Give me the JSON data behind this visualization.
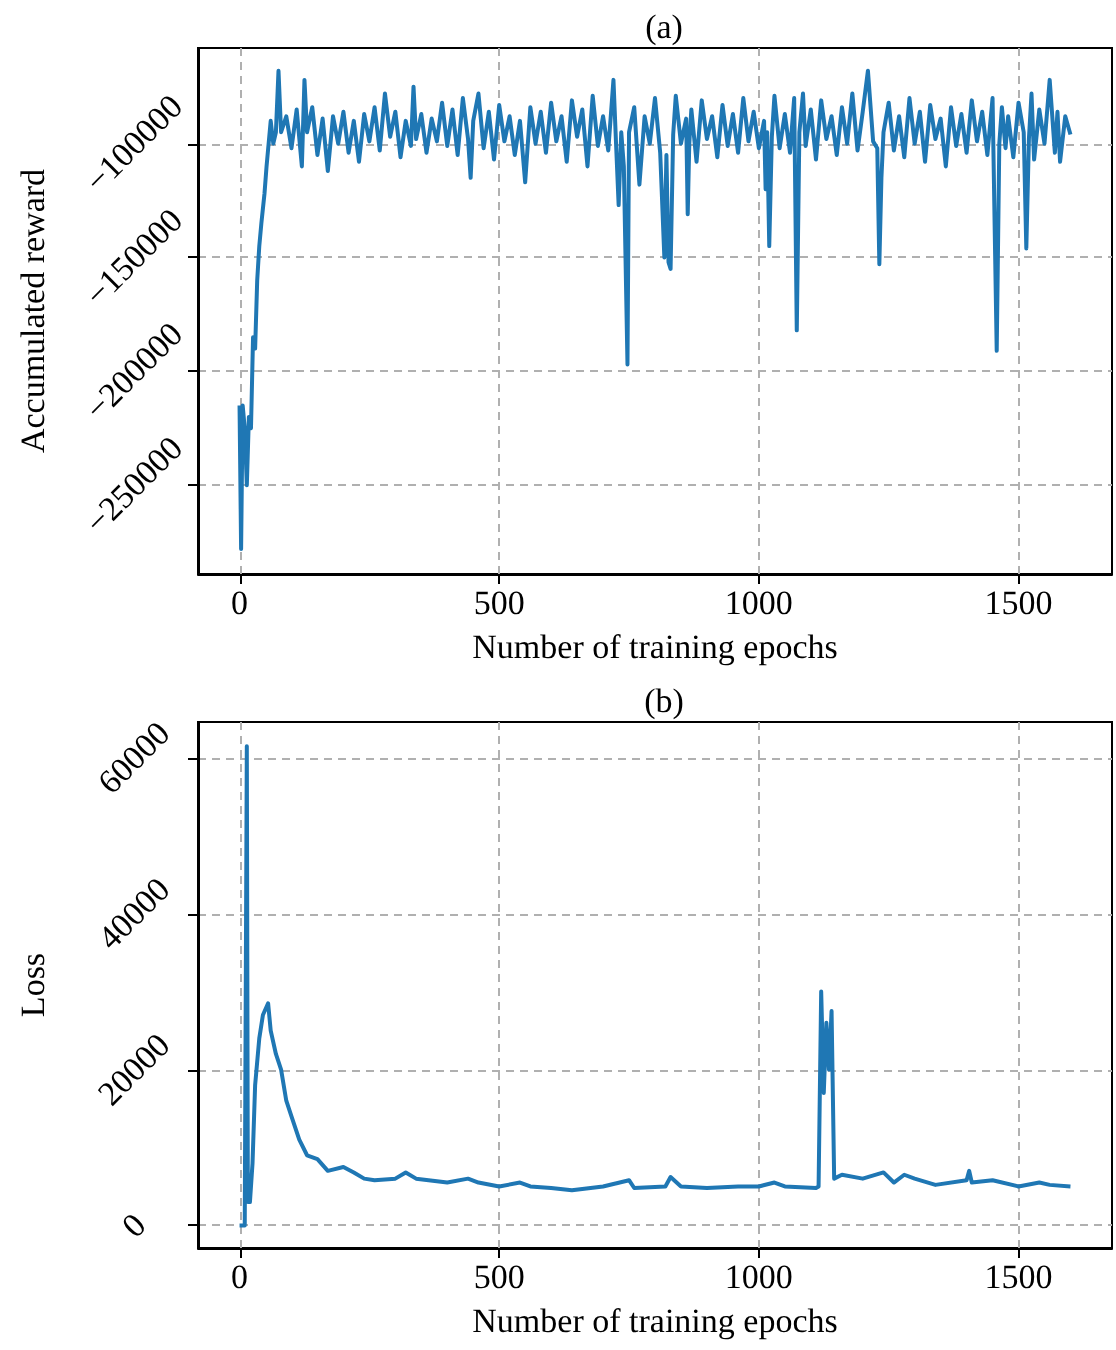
{
  "chart_data": [
    {
      "type": "line",
      "title": "(a)",
      "xlabel": "Number of training epochs",
      "ylabel": "Accumulated reward",
      "xlim": [
        -80,
        1680
      ],
      "ylim": [
        -289000,
        -58000
      ],
      "xticks": [
        0,
        500,
        1000,
        1500
      ],
      "yticks": [
        -250000,
        -200000,
        -150000,
        -100000
      ],
      "grid": true,
      "series": [
        {
          "color": "#1f77b4",
          "x": [
            0,
            3,
            6,
            10,
            14,
            18,
            22,
            26,
            30,
            34,
            38,
            42,
            48,
            52,
            56,
            60,
            65,
            70,
            75,
            80,
            90,
            100,
            110,
            120,
            125,
            130,
            140,
            150,
            160,
            170,
            180,
            190,
            200,
            210,
            220,
            230,
            240,
            250,
            260,
            270,
            280,
            290,
            300,
            310,
            320,
            330,
            335,
            340,
            350,
            360,
            370,
            380,
            390,
            400,
            410,
            420,
            430,
            440,
            445,
            450,
            460,
            470,
            480,
            490,
            500,
            510,
            520,
            530,
            540,
            550,
            560,
            570,
            580,
            590,
            600,
            610,
            620,
            630,
            640,
            650,
            660,
            670,
            680,
            690,
            700,
            710,
            720,
            725,
            730,
            735,
            740,
            747,
            750,
            760,
            770,
            780,
            790,
            800,
            810,
            818,
            822,
            826,
            830,
            835,
            840,
            850,
            860,
            863,
            866,
            870,
            880,
            890,
            900,
            910,
            920,
            930,
            940,
            950,
            960,
            970,
            980,
            990,
            1000,
            1010,
            1013,
            1016,
            1020,
            1025,
            1030,
            1040,
            1050,
            1060,
            1068,
            1073,
            1078,
            1085,
            1090,
            1100,
            1110,
            1120,
            1130,
            1140,
            1150,
            1160,
            1170,
            1180,
            1190,
            1200,
            1210,
            1220,
            1228,
            1232,
            1236,
            1240,
            1250,
            1260,
            1270,
            1280,
            1290,
            1300,
            1310,
            1320,
            1330,
            1340,
            1350,
            1360,
            1370,
            1380,
            1390,
            1400,
            1410,
            1420,
            1430,
            1440,
            1450,
            1458,
            1463,
            1468,
            1475,
            1480,
            1490,
            1500,
            1510,
            1515,
            1520,
            1525,
            1530,
            1540,
            1550,
            1560,
            1570,
            1575,
            1580,
            1590,
            1600
          ],
          "values": [
            -215000,
            -278000,
            -215000,
            -225000,
            -250000,
            -220000,
            -225000,
            -185000,
            -190000,
            -160000,
            -145000,
            -135000,
            -122000,
            -110000,
            -100000,
            -90000,
            -100000,
            -95000,
            -68000,
            -95000,
            -88000,
            -102000,
            -85000,
            -110000,
            -72000,
            -95000,
            -84000,
            -105000,
            -89000,
            -112000,
            -88000,
            -100000,
            -86000,
            -104000,
            -90000,
            -108000,
            -87000,
            -99000,
            -84000,
            -103000,
            -78000,
            -97000,
            -86000,
            -106000,
            -90000,
            -101000,
            -75000,
            -98000,
            -87000,
            -104000,
            -89000,
            -99000,
            -82000,
            -101000,
            -85000,
            -105000,
            -80000,
            -98000,
            -115000,
            -90000,
            -78000,
            -102000,
            -86000,
            -107000,
            -83000,
            -99000,
            -88000,
            -105000,
            -90000,
            -117000,
            -84000,
            -100000,
            -86000,
            -104000,
            -82000,
            -99000,
            -88000,
            -108000,
            -81000,
            -97000,
            -85000,
            -110000,
            -79000,
            -101000,
            -88000,
            -103000,
            -72000,
            -100000,
            -127000,
            -95000,
            -110000,
            -197000,
            -95000,
            -84000,
            -118000,
            -88000,
            -100000,
            -80000,
            -104000,
            -150000,
            -105000,
            -152000,
            -155000,
            -96000,
            -79000,
            -100000,
            -89000,
            -131000,
            -100000,
            -85000,
            -108000,
            -81000,
            -98000,
            -88000,
            -106000,
            -83000,
            -101000,
            -87000,
            -104000,
            -80000,
            -99000,
            -86000,
            -102000,
            -90000,
            -120000,
            -95000,
            -145000,
            -97000,
            -79000,
            -102000,
            -87000,
            -104000,
            -80000,
            -182000,
            -95000,
            -78000,
            -101000,
            -85000,
            -107000,
            -81000,
            -98000,
            -88000,
            -105000,
            -84000,
            -100000,
            -78000,
            -103000,
            -86000,
            -68000,
            -99000,
            -102000,
            -153000,
            -115000,
            -95000,
            -82000,
            -103000,
            -88000,
            -106000,
            -80000,
            -100000,
            -86000,
            -108000,
            -83000,
            -98000,
            -89000,
            -110000,
            -84000,
            -101000,
            -87000,
            -104000,
            -81000,
            -99000,
            -86000,
            -105000,
            -80000,
            -191000,
            -100000,
            -84000,
            -102000,
            -88000,
            -106000,
            -82000,
            -95000,
            -146000,
            -98000,
            -78000,
            -107000,
            -85000,
            -100000,
            -72000,
            -104000,
            -86000,
            -108000,
            -88000,
            -96000
          ]
        }
      ]
    },
    {
      "type": "line",
      "title": "(b)",
      "xlabel": "Number of training epochs",
      "ylabel": "Loss",
      "xlim": [
        -80,
        1680
      ],
      "ylim": [
        -2900,
        64600
      ],
      "xticks": [
        0,
        500,
        1000,
        1500
      ],
      "yticks": [
        0,
        20000,
        40000,
        60000
      ],
      "grid": true,
      "series": [
        {
          "color": "#1f77b4",
          "x": [
            0,
            10,
            14,
            16,
            20,
            25,
            30,
            38,
            45,
            55,
            60,
            70,
            80,
            90,
            100,
            115,
            130,
            150,
            170,
            200,
            220,
            240,
            260,
            300,
            320,
            340,
            400,
            440,
            460,
            500,
            540,
            560,
            600,
            640,
            700,
            750,
            760,
            820,
            830,
            850,
            900,
            960,
            1000,
            1030,
            1050,
            1110,
            1115,
            1120,
            1125,
            1130,
            1135,
            1140,
            1145,
            1160,
            1200,
            1240,
            1260,
            1280,
            1300,
            1340,
            1400,
            1405,
            1410,
            1450,
            1500,
            1540,
            1560,
            1600
          ],
          "values": [
            0,
            0,
            61500,
            3000,
            3000,
            8000,
            18000,
            24000,
            27000,
            28500,
            25000,
            22000,
            20000,
            16000,
            14000,
            11000,
            9000,
            8500,
            7000,
            7500,
            6800,
            6000,
            5800,
            6000,
            6800,
            6000,
            5500,
            6000,
            5500,
            5000,
            5500,
            5000,
            4800,
            4500,
            5000,
            5800,
            4800,
            5000,
            6200,
            5000,
            4800,
            5000,
            5000,
            5500,
            5000,
            4800,
            5000,
            30000,
            17000,
            26000,
            20000,
            27500,
            6000,
            6500,
            6000,
            6800,
            5500,
            6500,
            6000,
            5200,
            5800,
            7000,
            5500,
            5800,
            5000,
            5500,
            5200,
            5000
          ]
        }
      ]
    }
  ]
}
